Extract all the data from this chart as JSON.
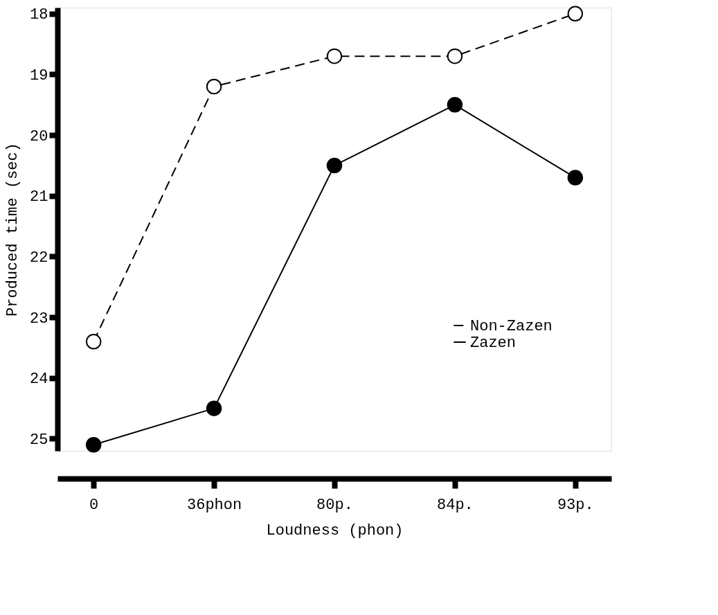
{
  "chart_data": {
    "type": "line",
    "xlabel": "Loudness        (phon)",
    "ylabel": "Produced time (sec)",
    "categories": [
      "0",
      "36phon",
      "80p.",
      "84p.",
      "93p."
    ],
    "series": [
      {
        "name": "Non-Zazen",
        "color": "#000000",
        "line_style": "dashed",
        "values": [
          23.4,
          19.2,
          18.7,
          18.7,
          18.0
        ]
      },
      {
        "name": "Zazen",
        "color": "#000000",
        "line_style": "solid",
        "values": [
          25.1,
          24.5,
          20.5,
          19.5,
          20.7
        ]
      }
    ],
    "ylim": [
      25.2,
      17.9
    ],
    "yticks": [
      18,
      19,
      20,
      21,
      22,
      23,
      24,
      25
    ],
    "marker": "circle",
    "legend": "right",
    "grid": false
  }
}
